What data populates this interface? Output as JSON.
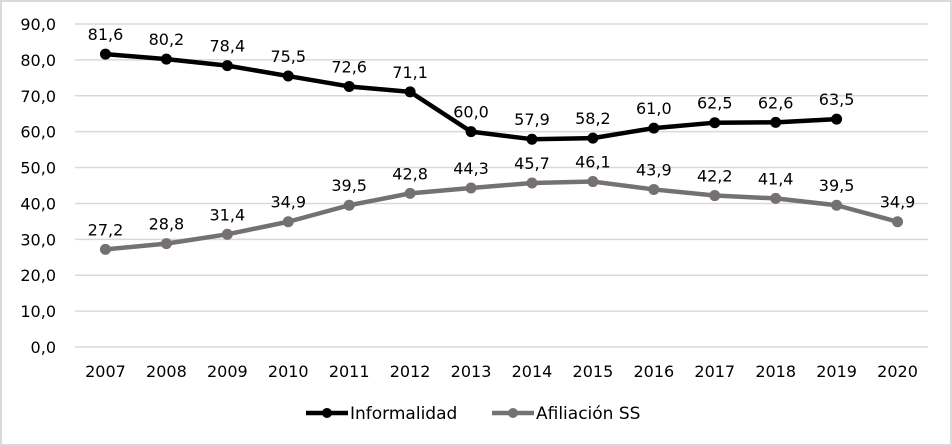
{
  "chart_data": {
    "type": "line",
    "title": "",
    "xlabel": "",
    "ylabel": "",
    "ylim": [
      0,
      90
    ],
    "yticks": [
      "0,0",
      "10,0",
      "20,0",
      "30,0",
      "40,0",
      "50,0",
      "60,0",
      "70,0",
      "80,0",
      "90,0"
    ],
    "ytick_values": [
      0,
      10,
      20,
      30,
      40,
      50,
      60,
      70,
      80,
      90
    ],
    "grid": true,
    "legend_position": "bottom",
    "categories": [
      "2007",
      "2008",
      "2009",
      "2010",
      "2011",
      "2012",
      "2013",
      "2014",
      "2015",
      "2016",
      "2017",
      "2018",
      "2019",
      "2020"
    ],
    "series": [
      {
        "name": "Informalidad",
        "color": "#000000",
        "values": [
          81.6,
          80.2,
          78.4,
          75.5,
          72.6,
          71.1,
          60.0,
          57.9,
          58.2,
          61.0,
          62.5,
          62.6,
          63.5,
          null
        ],
        "labels": [
          "81,6",
          "80,2",
          "78,4",
          "75,5",
          "72,6",
          "71,1",
          "60,0",
          "57,9",
          "58,2",
          "61,0",
          "62,5",
          "62,6",
          "63,5",
          null
        ]
      },
      {
        "name": "Afiliación SS",
        "color": "#767171",
        "values": [
          27.2,
          28.8,
          31.4,
          34.9,
          39.5,
          42.8,
          44.3,
          45.7,
          46.1,
          43.9,
          42.2,
          41.4,
          39.5,
          34.9
        ],
        "labels": [
          "27,2",
          "28,8",
          "31,4",
          "34,9",
          "39,5",
          "42,8",
          "44,3",
          "45,7",
          "46,1",
          "43,9",
          "42,2",
          "41,4",
          "39,5",
          "34,9"
        ]
      }
    ]
  }
}
